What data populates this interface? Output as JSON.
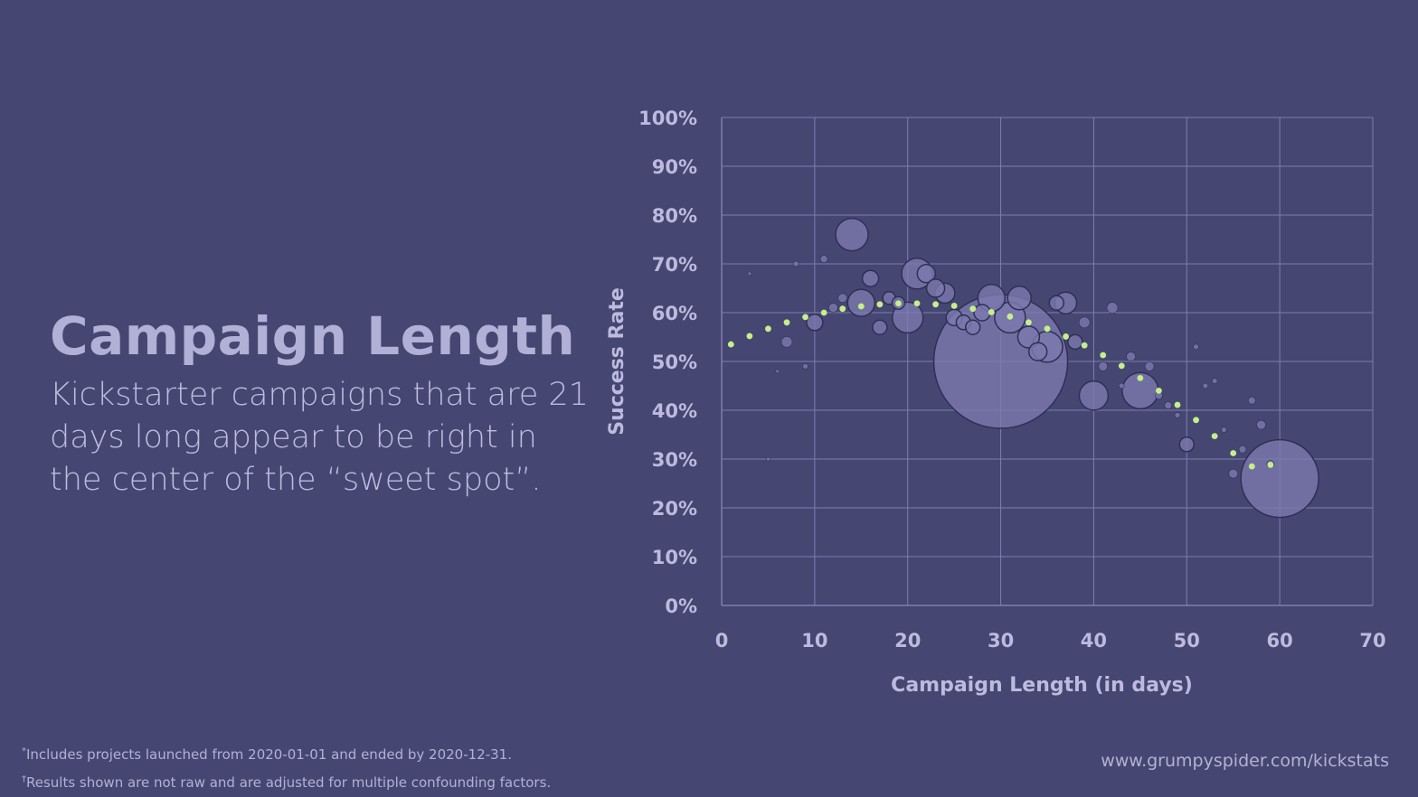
{
  "heading": {
    "title": "Campaign Length",
    "subtitle_lines": [
      "Kickstarter campaigns that are 21",
      "days long appear to be right in",
      "the center of the “sweet spot”."
    ]
  },
  "footnotes": {
    "note1_mark": "*",
    "note1_text": "Includes projects launched from 2020-01-01 and ended by 2020-12-31.",
    "note2_mark": "†",
    "note2_text": "Results shown are not raw and are adjusted for multiple confounding factors."
  },
  "website": "www.grumpyspider.com/kickstats",
  "colors": {
    "background": "#464672",
    "grid": "#7f7eb0",
    "bubble_fill": "#7b79ad",
    "bubble_stroke": "#2f2f55",
    "trend": "#c4f08a",
    "text": "#bcbbdf"
  },
  "chart_data": {
    "type": "scatter",
    "xlabel": "Campaign Length (in days)",
    "ylabel": "Success Rate",
    "xlim": [
      0,
      70
    ],
    "ylim": [
      0,
      100
    ],
    "xticks": [
      "0",
      "10",
      "20",
      "30",
      "40",
      "50",
      "60",
      "70"
    ],
    "yticks": [
      "0%",
      "10%",
      "20%",
      "30%",
      "40%",
      "50%",
      "60%",
      "70%",
      "80%",
      "90%",
      "100%"
    ],
    "grid": true,
    "points": [
      {
        "x": 1,
        "y": 54,
        "r": 2
      },
      {
        "x": 3,
        "y": 68,
        "r": 2
      },
      {
        "x": 5,
        "y": 30,
        "r": 2
      },
      {
        "x": 6,
        "y": 48,
        "r": 2
      },
      {
        "x": 7,
        "y": 54,
        "r": 6
      },
      {
        "x": 8,
        "y": 70,
        "r": 3
      },
      {
        "x": 9,
        "y": 49,
        "r": 3
      },
      {
        "x": 10,
        "y": 58,
        "r": 9
      },
      {
        "x": 11,
        "y": 71,
        "r": 4
      },
      {
        "x": 12,
        "y": 61,
        "r": 5
      },
      {
        "x": 13,
        "y": 63,
        "r": 5
      },
      {
        "x": 14,
        "y": 76,
        "r": 18
      },
      {
        "x": 15,
        "y": 62,
        "r": 15
      },
      {
        "x": 16,
        "y": 67,
        "r": 9
      },
      {
        "x": 17,
        "y": 57,
        "r": 8
      },
      {
        "x": 18,
        "y": 63,
        "r": 7
      },
      {
        "x": 19,
        "y": 62,
        "r": 7
      },
      {
        "x": 20,
        "y": 59,
        "r": 17
      },
      {
        "x": 21,
        "y": 68,
        "r": 17
      },
      {
        "x": 22,
        "y": 68,
        "r": 10
      },
      {
        "x": 23,
        "y": 65,
        "r": 10
      },
      {
        "x": 24,
        "y": 64,
        "r": 11
      },
      {
        "x": 25,
        "y": 59,
        "r": 9
      },
      {
        "x": 26,
        "y": 58,
        "r": 8
      },
      {
        "x": 27,
        "y": 57,
        "r": 8
      },
      {
        "x": 28,
        "y": 60,
        "r": 9
      },
      {
        "x": 29,
        "y": 63,
        "r": 15
      },
      {
        "x": 30,
        "y": 50,
        "r": 74
      },
      {
        "x": 31,
        "y": 59,
        "r": 17
      },
      {
        "x": 32,
        "y": 63,
        "r": 13
      },
      {
        "x": 33,
        "y": 55,
        "r": 12
      },
      {
        "x": 34,
        "y": 52,
        "r": 10
      },
      {
        "x": 35,
        "y": 53,
        "r": 17
      },
      {
        "x": 36,
        "y": 62,
        "r": 8
      },
      {
        "x": 37,
        "y": 62,
        "r": 12
      },
      {
        "x": 38,
        "y": 54,
        "r": 8
      },
      {
        "x": 39,
        "y": 58,
        "r": 6
      },
      {
        "x": 40,
        "y": 43,
        "r": 16
      },
      {
        "x": 41,
        "y": 49,
        "r": 5
      },
      {
        "x": 42,
        "y": 61,
        "r": 6
      },
      {
        "x": 43,
        "y": 45,
        "r": 3
      },
      {
        "x": 44,
        "y": 51,
        "r": 5
      },
      {
        "x": 45,
        "y": 44,
        "r": 20
      },
      {
        "x": 46,
        "y": 49,
        "r": 5
      },
      {
        "x": 47,
        "y": 43,
        "r": 4
      },
      {
        "x": 48,
        "y": 41,
        "r": 4
      },
      {
        "x": 49,
        "y": 39,
        "r": 3
      },
      {
        "x": 50,
        "y": 33,
        "r": 8
      },
      {
        "x": 51,
        "y": 53,
        "r": 3
      },
      {
        "x": 52,
        "y": 45,
        "r": 3
      },
      {
        "x": 53,
        "y": 46,
        "r": 3
      },
      {
        "x": 54,
        "y": 36,
        "r": 3
      },
      {
        "x": 55,
        "y": 27,
        "r": 5
      },
      {
        "x": 56,
        "y": 32,
        "r": 4
      },
      {
        "x": 57,
        "y": 42,
        "r": 4
      },
      {
        "x": 58,
        "y": 37,
        "r": 5
      },
      {
        "x": 59,
        "y": 29,
        "r": 4
      },
      {
        "x": 60,
        "y": 26,
        "r": 43
      }
    ],
    "trendline": {
      "x": [
        1,
        3,
        5,
        7,
        9,
        11,
        13,
        15,
        17,
        19,
        21,
        23,
        25,
        27,
        29,
        31,
        33,
        35,
        37,
        39,
        41,
        43,
        45,
        47,
        49,
        51,
        53,
        55,
        57,
        59
      ],
      "y": [
        53.5,
        55.2,
        56.7,
        58.0,
        59.1,
        60.0,
        60.8,
        61.3,
        61.7,
        61.9,
        61.9,
        61.7,
        61.4,
        60.8,
        60.1,
        59.2,
        58.0,
        56.7,
        55.1,
        53.3,
        51.3,
        49.1,
        46.6,
        44.0,
        41.1,
        38.0,
        34.7,
        31.2,
        28.5,
        28.8
      ]
    }
  }
}
